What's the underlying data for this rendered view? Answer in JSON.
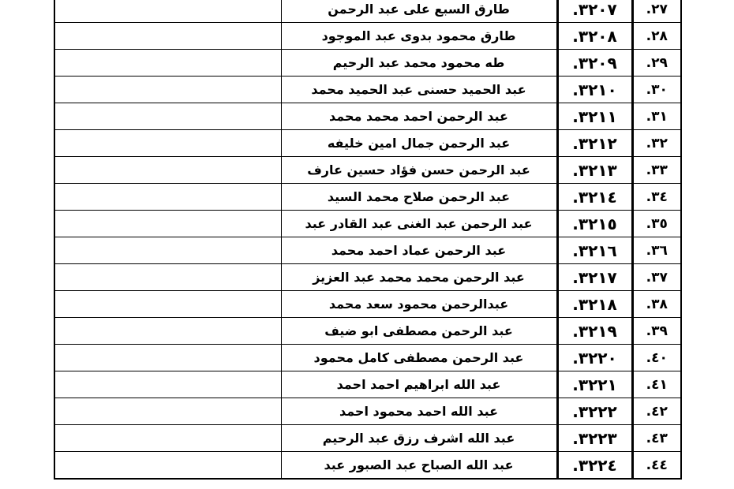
{
  "table": {
    "rows": [
      [
        "٢٧.",
        "٣٢٠٧.",
        "طارق السبع على عبد الرحمن"
      ],
      [
        "٢٨.",
        "٣٢٠٨.",
        "طارق محمود بدوى عبد الموجود"
      ],
      [
        "٢٩.",
        "٣٢٠٩.",
        "طه محمود محمد عبد الرحيم"
      ],
      [
        "٣٠.",
        "٣٢١٠.",
        "عبد الحميد حسنى عبد الحميد محمد"
      ],
      [
        "٣١.",
        "٣٢١١.",
        "عبد الرحمن احمد محمد محمد"
      ],
      [
        "٣٢.",
        "٣٢١٢.",
        "عبد الرحمن جمال امين خليفه"
      ],
      [
        "٣٣.",
        "٣٢١٣.",
        "عبد الرحمن حسن فؤاد حسين عارف"
      ],
      [
        "٣٤.",
        "٣٢١٤.",
        "عبد الرحمن صلاح محمد السيد"
      ],
      [
        "٣٥.",
        "٣٢١٥.",
        "عبد الرحمن عبد الغنى عبد القادر عبد"
      ],
      [
        "٣٦.",
        "٣٢١٦.",
        "عبد الرحمن عماد احمد محمد"
      ],
      [
        "٣٧.",
        "٣٢١٧.",
        "عبد الرحمن محمد محمد عبد العزيز"
      ],
      [
        "٣٨.",
        "٣٢١٨.",
        "عبدالرحمن محمود سعد محمد"
      ],
      [
        "٣٩.",
        "٣٢١٩.",
        "عبد الرحمن مصطفى ابو ضيف"
      ],
      [
        "٤٠.",
        "٣٢٢٠.",
        "عبد الرحمن مصطفى كامل محمود"
      ],
      [
        "٤١.",
        "٣٢٢١.",
        "عبد الله ابراهيم احمد احمد"
      ],
      [
        "٤٢.",
        "٣٢٢٢.",
        "عبد الله احمد محمود احمد"
      ],
      [
        "٤٣.",
        "٣٢٢٣.",
        "عبد الله اشرف رزق عبد الرحيم"
      ],
      [
        "٤٤.",
        "٣٢٢٤.",
        "عبد الله الصباح عبد الصبور عبد"
      ]
    ]
  }
}
